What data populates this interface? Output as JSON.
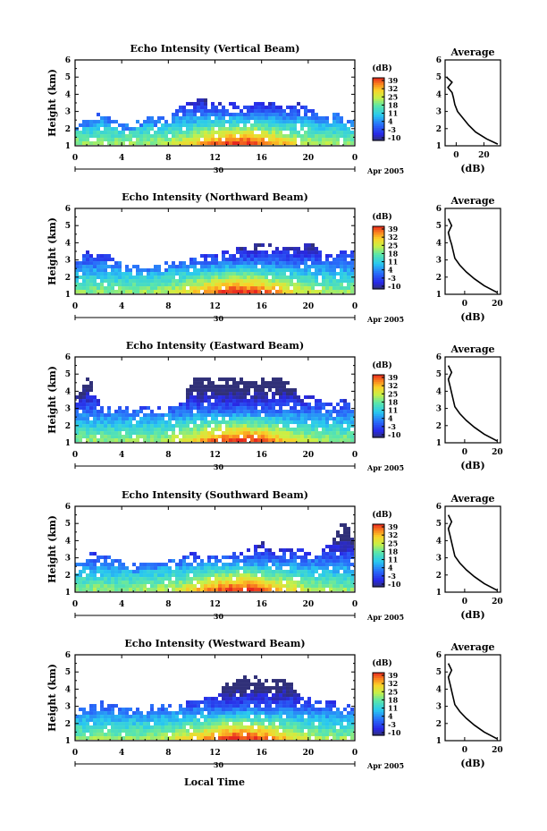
{
  "figure": {
    "x_title": "Local Time",
    "date_label": "Apr 2005",
    "day_label": "30",
    "colorbar_unit": "(dB)",
    "colorbar_ticks": [
      "39",
      "32",
      "25",
      "18",
      "11",
      "4",
      "-3",
      "-10"
    ]
  },
  "chart_data": [
    {
      "type": "heatmap",
      "title": "Echo Intensity (Vertical Beam)",
      "ylabel": "Height (km)",
      "xlim": [
        0,
        24
      ],
      "ylim": [
        1,
        6
      ],
      "xticks": [
        "0",
        "4",
        "8",
        "12",
        "16",
        "20",
        "0"
      ],
      "yticks": [
        "1",
        "2",
        "3",
        "4",
        "5",
        "6"
      ],
      "colorbar": {
        "unit": "(dB)",
        "min": -10,
        "max": 39
      },
      "top_height_km": [
        2.3,
        2.4,
        2.8,
        2.5,
        2.2,
        2.3,
        2.6,
        2.5,
        2.7,
        3.2,
        3.6,
        3.6,
        3.5,
        3.4,
        3.3,
        3.3,
        3.7,
        3.3,
        3.2,
        3.4,
        3.1,
        2.6,
        2.8,
        2.6,
        2.4
      ],
      "profile": {
        "title": "Average",
        "xlabel": "(dB)",
        "xticks": [
          "0",
          "20"
        ],
        "xlim": [
          -8,
          32
        ],
        "ylim": [
          1,
          6
        ],
        "height_km": [
          1.1,
          1.4,
          1.8,
          2.2,
          2.6,
          3.0,
          3.4,
          3.8,
          4.1,
          4.4,
          4.7,
          5.0
        ],
        "value_db": [
          30,
          22,
          14,
          9,
          5,
          1,
          -1,
          -2,
          -3,
          -6,
          -3,
          -7
        ]
      }
    },
    {
      "type": "heatmap",
      "title": "Echo Intensity (Northward Beam)",
      "ylabel": "Height (km)",
      "xlim": [
        0,
        24
      ],
      "ylim": [
        1,
        6
      ],
      "xticks": [
        "0",
        "4",
        "8",
        "12",
        "16",
        "20",
        "0"
      ],
      "yticks": [
        "1",
        "2",
        "3",
        "4",
        "5",
        "6"
      ],
      "colorbar": {
        "unit": "(dB)",
        "min": -10,
        "max": 39
      },
      "top_height_km": [
        2.9,
        3.5,
        3.3,
        3.1,
        2.6,
        2.6,
        2.7,
        2.6,
        2.8,
        2.8,
        3.0,
        3.2,
        3.3,
        3.4,
        3.6,
        3.8,
        4.0,
        3.7,
        3.6,
        3.6,
        3.9,
        3.4,
        3.1,
        3.6,
        3.2
      ],
      "profile": {
        "title": "Average",
        "xlabel": "(dB)",
        "xticks": [
          "0",
          "20"
        ],
        "xlim": [
          -12,
          22
        ],
        "ylim": [
          1,
          6
        ],
        "height_km": [
          1.1,
          1.5,
          1.9,
          2.3,
          2.7,
          3.1,
          3.5,
          3.9,
          4.2,
          4.6,
          5.0,
          5.4
        ],
        "value_db": [
          20,
          12,
          6,
          1,
          -3,
          -6,
          -7,
          -8,
          -9,
          -10,
          -8,
          -10
        ]
      }
    },
    {
      "type": "heatmap",
      "title": "Echo Intensity (Eastward Beam)",
      "ylabel": "Height (km)",
      "xlim": [
        0,
        24
      ],
      "ylim": [
        1,
        6
      ],
      "xticks": [
        "0",
        "4",
        "8",
        "12",
        "16",
        "20",
        "0"
      ],
      "yticks": [
        "1",
        "2",
        "3",
        "4",
        "5",
        "6"
      ],
      "colorbar": {
        "unit": "(dB)",
        "min": -10,
        "max": 39
      },
      "top_height_km": [
        3.6,
        4.8,
        3.2,
        3.0,
        3.0,
        2.9,
        3.0,
        3.0,
        3.1,
        3.2,
        4.9,
        4.8,
        4.8,
        4.7,
        4.6,
        4.7,
        4.8,
        4.7,
        4.6,
        3.9,
        3.6,
        3.4,
        3.3,
        3.4,
        3.2
      ],
      "profile": {
        "title": "Average",
        "xlabel": "(dB)",
        "xticks": [
          "0",
          "20"
        ],
        "xlim": [
          -12,
          22
        ],
        "ylim": [
          1,
          6
        ],
        "height_km": [
          1.1,
          1.5,
          1.9,
          2.3,
          2.7,
          3.1,
          3.5,
          3.9,
          4.3,
          4.7,
          5.1,
          5.5
        ],
        "value_db": [
          20,
          12,
          6,
          1,
          -3,
          -6,
          -7,
          -8,
          -9,
          -10,
          -8,
          -10
        ]
      }
    },
    {
      "type": "heatmap",
      "title": "Echo Intensity (Southward Beam)",
      "ylabel": "Height (km)",
      "xlim": [
        0,
        24
      ],
      "ylim": [
        1,
        6
      ],
      "xticks": [
        "0",
        "4",
        "8",
        "12",
        "16",
        "20",
        "0"
      ],
      "yticks": [
        "1",
        "2",
        "3",
        "4",
        "5",
        "6"
      ],
      "colorbar": {
        "unit": "(dB)",
        "min": -10,
        "max": 39
      },
      "top_height_km": [
        2.6,
        3.3,
        3.1,
        3.0,
        2.7,
        2.5,
        2.6,
        2.8,
        2.8,
        2.9,
        3.2,
        3.1,
        3.0,
        3.1,
        3.3,
        3.5,
        3.8,
        3.4,
        3.5,
        3.4,
        3.3,
        3.3,
        4.0,
        5.2,
        3.4
      ],
      "profile": {
        "title": "Average",
        "xlabel": "(dB)",
        "xticks": [
          "0",
          "20"
        ],
        "xlim": [
          -12,
          22
        ],
        "ylim": [
          1,
          6
        ],
        "height_km": [
          1.1,
          1.5,
          1.9,
          2.3,
          2.7,
          3.1,
          3.5,
          3.9,
          4.3,
          4.7,
          5.1,
          5.5
        ],
        "value_db": [
          20,
          12,
          6,
          1,
          -3,
          -6,
          -7,
          -8,
          -9,
          -10,
          -8,
          -10
        ]
      }
    },
    {
      "type": "heatmap",
      "title": "Echo Intensity (Westward Beam)",
      "ylabel": "Height (km)",
      "xlim": [
        0,
        24
      ],
      "ylim": [
        1,
        6
      ],
      "xticks": [
        "0",
        "4",
        "8",
        "12",
        "16",
        "20",
        "0"
      ],
      "yticks": [
        "1",
        "2",
        "3",
        "4",
        "5",
        "6"
      ],
      "colorbar": {
        "unit": "(dB)",
        "min": -10,
        "max": 39
      },
      "top_height_km": [
        2.7,
        2.9,
        3.2,
        3.0,
        2.8,
        2.8,
        2.9,
        3.0,
        3.0,
        3.1,
        3.2,
        3.4,
        3.5,
        4.4,
        4.6,
        4.7,
        4.6,
        4.5,
        4.6,
        3.6,
        3.4,
        3.3,
        3.2,
        3.0,
        2.8
      ],
      "profile": {
        "title": "Average",
        "xlabel": "(dB)",
        "xticks": [
          "0",
          "20"
        ],
        "xlim": [
          -12,
          22
        ],
        "ylim": [
          1,
          6
        ],
        "height_km": [
          1.1,
          1.5,
          1.9,
          2.3,
          2.7,
          3.1,
          3.5,
          3.9,
          4.3,
          4.7,
          5.1,
          5.5
        ],
        "value_db": [
          20,
          12,
          6,
          1,
          -3,
          -6,
          -7,
          -8,
          -9,
          -10,
          -8,
          -10
        ]
      }
    }
  ]
}
